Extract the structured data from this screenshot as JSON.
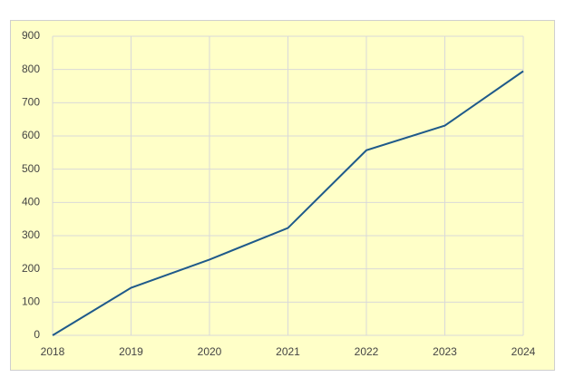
{
  "chart_data": {
    "type": "line",
    "x": [
      2018,
      2019,
      2020,
      2021,
      2022,
      2023,
      2024
    ],
    "series": [
      {
        "color": "#1f5a8a",
        "values": [
          0,
          143,
          228,
          323,
          557,
          631,
          795
        ]
      }
    ],
    "xlim": [
      2018,
      2024
    ],
    "xticks": [
      2018,
      2019,
      2020,
      2021,
      2022,
      2023,
      2024
    ],
    "ylim": [
      0,
      900
    ],
    "yticks": [
      0,
      100,
      200,
      300,
      400,
      500,
      600,
      700,
      800,
      900
    ],
    "grid": true
  }
}
